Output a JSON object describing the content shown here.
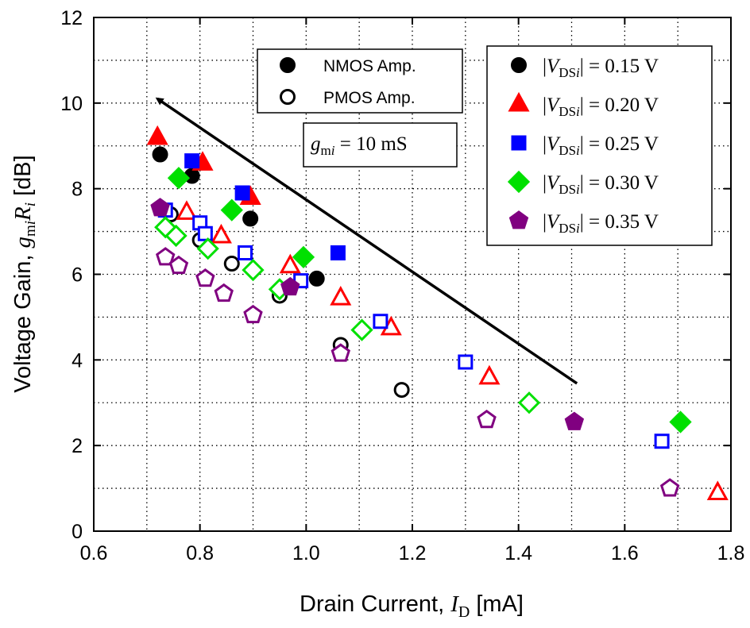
{
  "chart_data": {
    "type": "scatter",
    "xlabel": {
      "prefix": "Drain Current, ",
      "var": "I",
      "sub": "D",
      "suffix": " [mA]"
    },
    "ylabel": {
      "prefix": "Voltage Gain, ",
      "g": "g",
      "gsub": "m",
      "gsubi": "i",
      "R": "R",
      "Rsub": "i",
      "suffix": " [dB]"
    },
    "xlim": [
      0.6,
      1.8
    ],
    "ylim": [
      0,
      12
    ],
    "x_ticks": [
      "0.6",
      "0.8",
      "1.0",
      "1.2",
      "1.4",
      "1.6",
      "1.8"
    ],
    "y_ticks": [
      "0",
      "2",
      "4",
      "6",
      "8",
      "10",
      "12"
    ],
    "grid": true,
    "legend_type": {
      "nmos": "NMOS Amp.",
      "pmos": "PMOS Amp."
    },
    "legend_vds": {
      "var": "V",
      "sub": "DS",
      "subi": "i"
    },
    "annotation": {
      "g": "g",
      "sub": "m",
      "subi": "i",
      "text": " = 10 mS"
    },
    "arrow": {
      "from": [
        1.51,
        3.45
      ],
      "to": [
        0.72,
        10.1
      ]
    },
    "series": [
      {
        "name": "|VDSi| = 0.15 V",
        "label_value": " = 0.15 V",
        "marker": "circle",
        "color": "#000000",
        "nmos": [
          [
            0.725,
            8.8
          ],
          [
            0.785,
            8.3
          ],
          [
            0.895,
            7.3
          ],
          [
            1.02,
            5.9
          ]
        ],
        "pmos": [
          [
            0.745,
            7.4
          ],
          [
            0.8,
            6.8
          ],
          [
            0.86,
            6.25
          ],
          [
            0.95,
            5.5
          ],
          [
            1.065,
            4.35
          ],
          [
            1.18,
            3.3
          ]
        ]
      },
      {
        "name": "|VDSi| = 0.20 V",
        "label_value": " = 0.20 V",
        "marker": "triangle",
        "color": "#ff0000",
        "nmos": [
          [
            0.72,
            9.2
          ],
          [
            0.805,
            8.6
          ],
          [
            0.895,
            7.8
          ]
        ],
        "pmos": [
          [
            0.775,
            7.45
          ],
          [
            0.84,
            6.9
          ],
          [
            0.97,
            6.2
          ],
          [
            1.065,
            5.45
          ],
          [
            1.16,
            4.75
          ],
          [
            1.345,
            3.6
          ],
          [
            1.775,
            0.9
          ]
        ]
      },
      {
        "name": "|VDSi| = 0.25 V",
        "label_value": " = 0.25 V",
        "marker": "square",
        "color": "#0000ff",
        "nmos": [
          [
            0.785,
            8.65
          ],
          [
            0.88,
            7.9
          ],
          [
            1.06,
            6.5
          ]
        ],
        "pmos": [
          [
            0.735,
            7.5
          ],
          [
            0.8,
            7.2
          ],
          [
            0.81,
            6.95
          ],
          [
            0.885,
            6.5
          ],
          [
            0.99,
            5.85
          ],
          [
            1.14,
            4.9
          ],
          [
            1.3,
            3.95
          ],
          [
            1.67,
            2.1
          ]
        ]
      },
      {
        "name": "|VDSi| = 0.30 V",
        "label_value": " = 0.30 V",
        "marker": "diamond",
        "color": "#00e000",
        "nmos": [
          [
            0.76,
            8.25
          ],
          [
            0.86,
            7.5
          ],
          [
            0.995,
            6.4
          ],
          [
            1.705,
            2.55
          ]
        ],
        "pmos": [
          [
            0.735,
            7.1
          ],
          [
            0.755,
            6.9
          ],
          [
            0.815,
            6.6
          ],
          [
            0.9,
            6.1
          ],
          [
            0.95,
            5.65
          ],
          [
            1.105,
            4.7
          ],
          [
            1.42,
            3.0
          ]
        ]
      },
      {
        "name": "|VDSi| = 0.35 V",
        "label_value": " = 0.35 V",
        "marker": "pentagon",
        "color": "#800080",
        "nmos": [
          [
            0.725,
            7.55
          ],
          [
            0.97,
            5.7
          ],
          [
            1.505,
            2.55
          ]
        ],
        "pmos": [
          [
            0.735,
            6.4
          ],
          [
            0.76,
            6.2
          ],
          [
            0.81,
            5.9
          ],
          [
            0.845,
            5.55
          ],
          [
            0.9,
            5.05
          ],
          [
            1.065,
            4.15
          ],
          [
            1.34,
            2.6
          ],
          [
            1.685,
            1.0
          ]
        ]
      }
    ]
  }
}
